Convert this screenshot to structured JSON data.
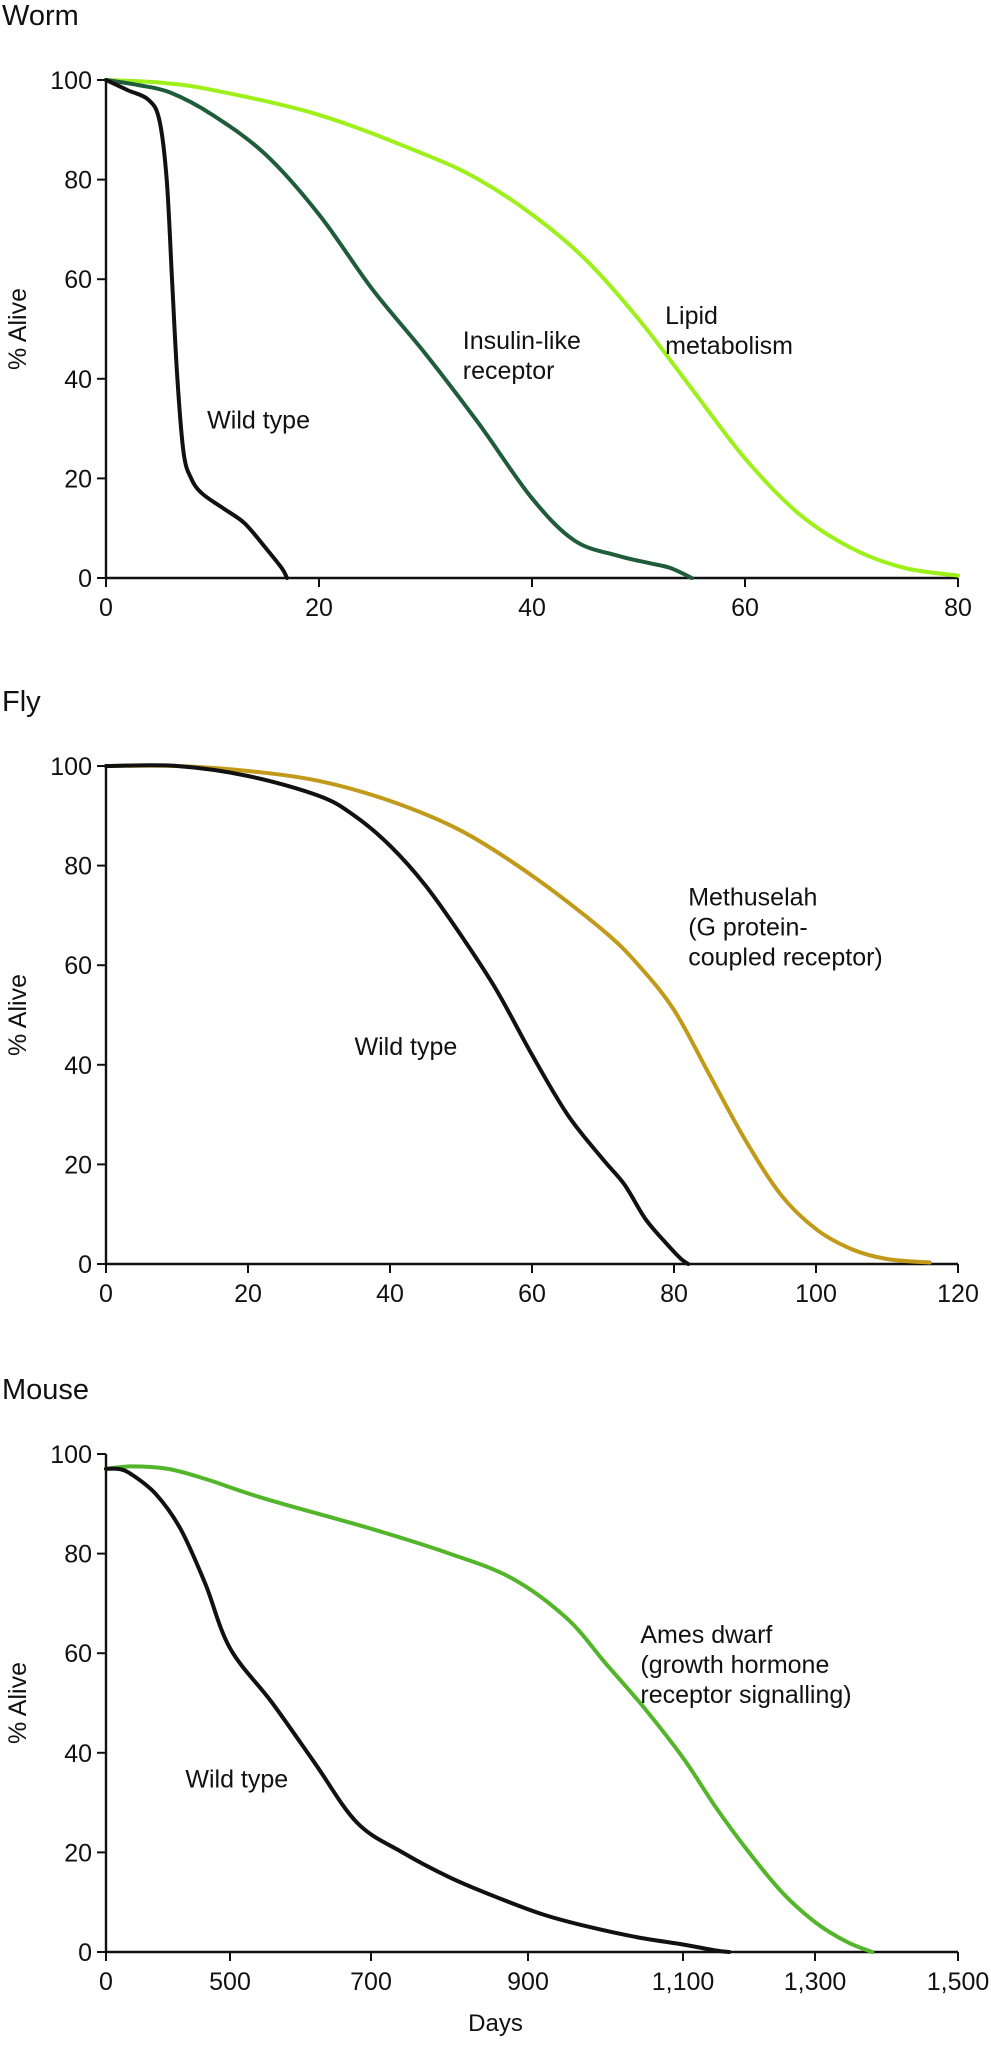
{
  "x_axis_label": "Days",
  "chart_data": [
    {
      "type": "line",
      "title": "Worm",
      "ylabel": "% Alive",
      "xlabel": "",
      "xlim": [
        0,
        80
      ],
      "ylim": [
        0,
        100
      ],
      "xticks": [
        0,
        20,
        40,
        60,
        80
      ],
      "xtick_labels": [
        "0",
        "20",
        "40",
        "60",
        "80"
      ],
      "yticks": [
        0,
        20,
        40,
        60,
        80,
        100
      ],
      "ytick_labels": [
        "0",
        "20",
        "40",
        "60",
        "80",
        "100"
      ],
      "series": [
        {
          "name": "Lipid metabolism",
          "color": "#9ef01a",
          "label_lines": [
            "Lipid",
            "metabolism"
          ],
          "label_at": [
            52.5,
            51
          ],
          "points": [
            [
              0,
              100
            ],
            [
              5,
              99.5
            ],
            [
              10,
              98
            ],
            [
              20,
              93
            ],
            [
              30,
              85
            ],
            [
              35,
              80
            ],
            [
              40,
              73
            ],
            [
              45,
              64
            ],
            [
              50,
              52
            ],
            [
              55,
              38
            ],
            [
              60,
              24
            ],
            [
              65,
              13
            ],
            [
              70,
              6
            ],
            [
              75,
              2
            ],
            [
              80,
              0.5
            ]
          ]
        },
        {
          "name": "Insulin-like receptor",
          "color": "#1e5c3a",
          "label_lines": [
            "Insulin-like",
            "receptor"
          ],
          "label_at": [
            33.5,
            46
          ],
          "points": [
            [
              0,
              100
            ],
            [
              3,
              99
            ],
            [
              6,
              97.5
            ],
            [
              10,
              93
            ],
            [
              15,
              85
            ],
            [
              20,
              73
            ],
            [
              25,
              58
            ],
            [
              30,
              45
            ],
            [
              35,
              31
            ],
            [
              40,
              16
            ],
            [
              44,
              7.5
            ],
            [
              48,
              4.5
            ],
            [
              51,
              3
            ],
            [
              53,
              2
            ],
            [
              55,
              0
            ]
          ]
        },
        {
          "name": "Wild type",
          "color": "#111111",
          "label_lines": [
            "Wild type"
          ],
          "label_at": [
            9.5,
            30
          ],
          "points": [
            [
              0,
              100
            ],
            [
              2,
              98
            ],
            [
              4,
              96
            ],
            [
              5,
              92
            ],
            [
              5.7,
              80
            ],
            [
              6.2,
              60
            ],
            [
              6.7,
              40
            ],
            [
              7.3,
              25
            ],
            [
              8,
              20
            ],
            [
              9,
              17
            ],
            [
              11,
              14
            ],
            [
              13,
              11
            ],
            [
              15,
              6
            ],
            [
              16.5,
              2
            ],
            [
              17,
              0
            ]
          ]
        }
      ]
    },
    {
      "type": "line",
      "title": "Fly",
      "ylabel": "% Alive",
      "xlabel": "",
      "xlim": [
        0,
        120
      ],
      "ylim": [
        0,
        100
      ],
      "xticks": [
        0,
        20,
        40,
        60,
        80,
        100,
        120
      ],
      "xtick_labels": [
        "0",
        "20",
        "40",
        "60",
        "80",
        "100",
        "120"
      ],
      "yticks": [
        0,
        20,
        40,
        60,
        80,
        100
      ],
      "ytick_labels": [
        "0",
        "20",
        "40",
        "60",
        "80",
        "100"
      ],
      "series": [
        {
          "name": "Methuselah (G protein-coupled receptor)",
          "color": "#c19a1a",
          "label_lines": [
            "Methuselah",
            "(G protein-",
            "coupled receptor)"
          ],
          "label_at": [
            82,
            72
          ],
          "points": [
            [
              0,
              100
            ],
            [
              10,
              100
            ],
            [
              20,
              99
            ],
            [
              30,
              97
            ],
            [
              40,
              93
            ],
            [
              50,
              87
            ],
            [
              60,
              78
            ],
            [
              70,
              67
            ],
            [
              75,
              60
            ],
            [
              80,
              51
            ],
            [
              85,
              38
            ],
            [
              90,
              25
            ],
            [
              95,
              14
            ],
            [
              100,
              7
            ],
            [
              105,
              3
            ],
            [
              110,
              1
            ],
            [
              116,
              0.3
            ]
          ]
        },
        {
          "name": "Wild type",
          "color": "#111111",
          "label_lines": [
            "Wild type"
          ],
          "label_at": [
            35,
            42
          ],
          "points": [
            [
              0,
              100
            ],
            [
              10,
              100
            ],
            [
              20,
              98
            ],
            [
              30,
              94
            ],
            [
              35,
              90
            ],
            [
              40,
              84
            ],
            [
              45,
              76
            ],
            [
              50,
              66
            ],
            [
              55,
              55
            ],
            [
              60,
              42
            ],
            [
              65,
              30
            ],
            [
              70,
              21
            ],
            [
              73,
              16
            ],
            [
              76,
              9
            ],
            [
              79,
              4
            ],
            [
              81,
              1
            ],
            [
              82,
              0
            ]
          ]
        }
      ]
    },
    {
      "type": "line",
      "title": "Mouse",
      "ylabel": "% Alive",
      "xlabel": "Days",
      "xlim": [
        0,
        1500
      ],
      "ylim": [
        0,
        100
      ],
      "xticks": [
        0,
        500,
        700,
        900,
        1100,
        1300,
        1500
      ],
      "xtick_labels": [
        "0",
        "500",
        "700",
        "900",
        "1,100",
        "1,300",
        "1,500"
      ],
      "yticks": [
        0,
        20,
        40,
        60,
        80,
        100
      ],
      "ytick_labels": [
        "0",
        "20",
        "40",
        "60",
        "80",
        "100"
      ],
      "series": [
        {
          "name": "Ames dwarf (growth hormone receptor signalling)",
          "color": "#52b52a",
          "label_lines": [
            "Ames dwarf",
            "(growth hormone",
            "receptor signalling)"
          ],
          "label_at": [
            1045,
            62
          ],
          "points": [
            [
              0,
              97
            ],
            [
              100,
              97.5
            ],
            [
              250,
              97
            ],
            [
              400,
              95
            ],
            [
              550,
              91
            ],
            [
              700,
              85
            ],
            [
              800,
              80
            ],
            [
              880,
              75
            ],
            [
              950,
              67
            ],
            [
              1000,
              58
            ],
            [
              1050,
              49
            ],
            [
              1100,
              39
            ],
            [
              1150,
              29
            ],
            [
              1200,
              20
            ],
            [
              1250,
              12
            ],
            [
              1300,
              6
            ],
            [
              1345,
              2
            ],
            [
              1380,
              0
            ]
          ]
        },
        {
          "name": "Wild type",
          "color": "#111111",
          "label_lines": [
            "Wild type"
          ],
          "label_at": [
            320,
            33
          ],
          "points": [
            [
              0,
              97
            ],
            [
              50,
              97
            ],
            [
              100,
              96
            ],
            [
              200,
              92
            ],
            [
              300,
              85
            ],
            [
              400,
              74
            ],
            [
              500,
              61
            ],
            [
              560,
              50
            ],
            [
              620,
              38
            ],
            [
              680,
              26
            ],
            [
              740,
              20
            ],
            [
              800,
              15
            ],
            [
              860,
              11
            ],
            [
              920,
              7.5
            ],
            [
              980,
              5
            ],
            [
              1040,
              3
            ],
            [
              1100,
              1.5
            ],
            [
              1150,
              0.3
            ],
            [
              1170,
              0
            ]
          ]
        }
      ]
    }
  ]
}
